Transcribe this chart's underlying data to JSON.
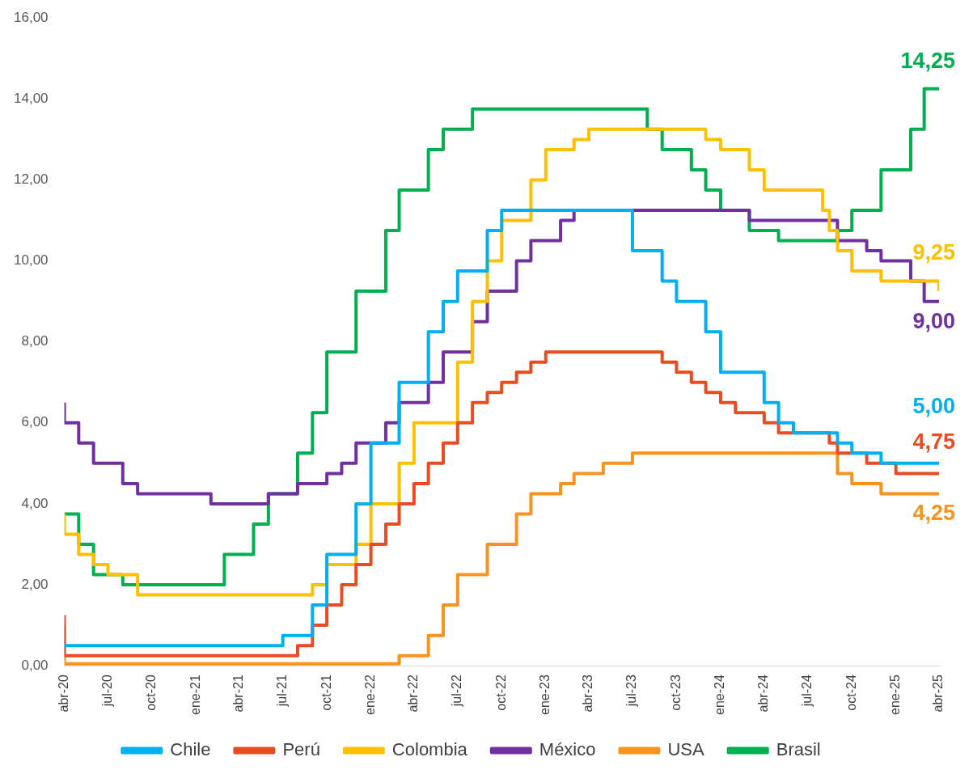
{
  "chart_data": {
    "type": "step",
    "xlim": [
      "2020-04",
      "2025-04"
    ],
    "xticks": [
      {
        "value": "2020-04",
        "label": "abr-20"
      },
      {
        "value": "2020-07",
        "label": "jul-20"
      },
      {
        "value": "2020-10",
        "label": "oct-20"
      },
      {
        "value": "2021-01",
        "label": "ene-21"
      },
      {
        "value": "2021-04",
        "label": "abr-21"
      },
      {
        "value": "2021-07",
        "label": "jul-21"
      },
      {
        "value": "2021-10",
        "label": "oct-21"
      },
      {
        "value": "2022-01",
        "label": "ene-22"
      },
      {
        "value": "2022-04",
        "label": "abr-22"
      },
      {
        "value": "2022-07",
        "label": "jul-22"
      },
      {
        "value": "2022-10",
        "label": "oct-22"
      },
      {
        "value": "2023-01",
        "label": "ene-23"
      },
      {
        "value": "2023-04",
        "label": "abr-23"
      },
      {
        "value": "2023-07",
        "label": "jul-23"
      },
      {
        "value": "2023-10",
        "label": "oct-23"
      },
      {
        "value": "2024-01",
        "label": "ene-24"
      },
      {
        "value": "2024-04",
        "label": "abr-24"
      },
      {
        "value": "2024-07",
        "label": "jul-24"
      },
      {
        "value": "2024-10",
        "label": "oct-24"
      },
      {
        "value": "2025-01",
        "label": "ene-25"
      },
      {
        "value": "2025-04",
        "label": "abr-25"
      }
    ],
    "ylim": [
      0,
      16
    ],
    "yticks": [
      {
        "value": 0,
        "label": "0,00"
      },
      {
        "value": 2,
        "label": "2,00"
      },
      {
        "value": 4,
        "label": "4,00"
      },
      {
        "value": 6,
        "label": "6,00"
      },
      {
        "value": 8,
        "label": "8,00"
      },
      {
        "value": 10,
        "label": "10,00"
      },
      {
        "value": 12,
        "label": "12,00"
      },
      {
        "value": 14,
        "label": "14,00"
      },
      {
        "value": 16,
        "label": "16,00"
      }
    ],
    "grid": false,
    "legend": "bottom",
    "marker": "none",
    "line_style": "solid",
    "series": [
      {
        "name": "Chile",
        "color": "#00b0f0",
        "x": [
          "2020-04",
          "2021-07",
          "2021-09",
          "2021-10",
          "2021-12",
          "2022-01",
          "2022-03",
          "2022-05",
          "2022-06",
          "2022-07",
          "2022-09",
          "2022-10",
          "2023-07",
          "2023-09",
          "2023-10",
          "2023-12",
          "2024-01",
          "2024-04",
          "2024-05",
          "2024-06",
          "2024-09",
          "2024-10",
          "2024-12",
          "2025-04"
        ],
        "values": [
          0.5,
          0.75,
          1.5,
          2.75,
          4.0,
          5.5,
          7.0,
          8.25,
          9.0,
          9.75,
          10.75,
          11.25,
          10.25,
          9.5,
          9.0,
          8.25,
          7.25,
          6.5,
          6.0,
          5.75,
          5.5,
          5.25,
          5.0,
          5.0
        ],
        "value_labels": [
          null,
          null,
          null,
          null,
          null,
          null,
          null,
          null,
          null,
          null,
          null,
          null,
          null,
          null,
          null,
          null,
          null,
          null,
          null,
          null,
          null,
          null,
          null,
          "5,00"
        ]
      },
      {
        "name": "Perú",
        "color": "#e84c22",
        "x": [
          "2020-04",
          "2020-04",
          "2021-08",
          "2021-09",
          "2021-10",
          "2021-11",
          "2021-12",
          "2022-01",
          "2022-02",
          "2022-03",
          "2022-04",
          "2022-05",
          "2022-06",
          "2022-07",
          "2022-08",
          "2022-09",
          "2022-10",
          "2022-11",
          "2022-12",
          "2023-01",
          "2023-09",
          "2023-10",
          "2023-11",
          "2023-12",
          "2024-01",
          "2024-02",
          "2024-04",
          "2024-05",
          "2024-08-15",
          "2024-09",
          "2024-11",
          "2025-01",
          "2025-04"
        ],
        "values": [
          1.25,
          0.25,
          0.5,
          1.0,
          1.5,
          2.0,
          2.5,
          3.0,
          3.5,
          4.0,
          4.5,
          5.0,
          5.5,
          6.0,
          6.5,
          6.75,
          7.0,
          7.25,
          7.5,
          7.75,
          7.5,
          7.25,
          7.0,
          6.75,
          6.5,
          6.25,
          6.0,
          5.75,
          5.5,
          5.25,
          5.0,
          4.75,
          4.75
        ],
        "value_labels": [
          null,
          null,
          null,
          null,
          null,
          null,
          null,
          null,
          null,
          null,
          null,
          null,
          null,
          null,
          null,
          null,
          null,
          null,
          null,
          null,
          null,
          null,
          null,
          null,
          null,
          null,
          null,
          null,
          null,
          null,
          null,
          null,
          "4,75"
        ]
      },
      {
        "name": "Colombia",
        "color": "#ffc000",
        "x": [
          "2020-04",
          "2020-04",
          "2020-05",
          "2020-06",
          "2020-07",
          "2020-09",
          "2021-09",
          "2021-10",
          "2021-12",
          "2022-01",
          "2022-03",
          "2022-04",
          "2022-07",
          "2022-08",
          "2022-09",
          "2022-10",
          "2022-12",
          "2023-01",
          "2023-03",
          "2023-04",
          "2023-12",
          "2024-01",
          "2024-03",
          "2024-04",
          "2024-08",
          "2024-08-15",
          "2024-09",
          "2024-10",
          "2024-12",
          "2025-04"
        ],
        "values": [
          3.75,
          3.25,
          2.75,
          2.5,
          2.25,
          1.75,
          2.0,
          2.5,
          3.0,
          4.0,
          5.0,
          6.0,
          7.5,
          9.0,
          10.0,
          11.0,
          12.0,
          12.75,
          13.0,
          13.25,
          13.0,
          12.75,
          12.25,
          11.75,
          11.25,
          10.75,
          10.25,
          9.75,
          9.5,
          9.25
        ],
        "value_labels": [
          null,
          null,
          null,
          null,
          null,
          null,
          null,
          null,
          null,
          null,
          null,
          null,
          null,
          null,
          null,
          null,
          null,
          null,
          null,
          null,
          null,
          null,
          null,
          null,
          null,
          null,
          null,
          null,
          null,
          "9,25"
        ]
      },
      {
        "name": "México",
        "color": "#7030a0",
        "x": [
          "2020-04",
          "2020-04",
          "2020-05",
          "2020-06",
          "2020-08",
          "2020-09",
          "2021-02",
          "2021-06",
          "2021-08",
          "2021-10",
          "2021-11",
          "2021-12",
          "2022-02",
          "2022-03",
          "2022-05",
          "2022-06",
          "2022-08",
          "2022-09",
          "2022-11",
          "2022-12",
          "2023-02",
          "2023-03",
          "2024-03",
          "2024-09",
          "2024-11",
          "2024-12",
          "2025-02",
          "2025-03",
          "2025-04"
        ],
        "values": [
          6.5,
          6.0,
          5.5,
          5.0,
          4.5,
          4.25,
          4.0,
          4.25,
          4.5,
          4.75,
          5.0,
          5.5,
          6.0,
          6.5,
          7.0,
          7.75,
          8.5,
          9.25,
          10.0,
          10.5,
          11.0,
          11.25,
          11.0,
          10.5,
          10.25,
          10.0,
          9.5,
          9.0,
          9.0
        ],
        "value_labels": [
          null,
          null,
          null,
          null,
          null,
          null,
          null,
          null,
          null,
          null,
          null,
          null,
          null,
          null,
          null,
          null,
          null,
          null,
          null,
          null,
          null,
          null,
          null,
          null,
          null,
          null,
          null,
          null,
          "9,00"
        ]
      },
      {
        "name": "USA",
        "color": "#f7941d",
        "x": [
          "2020-04",
          "2020-04",
          "2022-03",
          "2022-05",
          "2022-06",
          "2022-07",
          "2022-09",
          "2022-11",
          "2022-12",
          "2023-02",
          "2023-03",
          "2023-05",
          "2023-07",
          "2024-09",
          "2024-10",
          "2024-12",
          "2025-04"
        ],
        "values": [
          1.0,
          0.05,
          0.25,
          0.75,
          1.5,
          2.25,
          3.0,
          3.75,
          4.25,
          4.5,
          4.75,
          5.0,
          5.25,
          4.75,
          4.5,
          4.25,
          4.25
        ],
        "value_labels": [
          null,
          null,
          null,
          null,
          null,
          null,
          null,
          null,
          null,
          null,
          null,
          null,
          null,
          null,
          null,
          null,
          "4,25"
        ]
      },
      {
        "name": "Brasil",
        "color": "#00b050",
        "x": [
          "2020-04",
          "2020-05",
          "2020-06",
          "2020-08",
          "2021-03",
          "2021-05",
          "2021-06",
          "2021-08",
          "2021-09",
          "2021-10",
          "2021-12",
          "2022-02",
          "2022-03",
          "2022-05",
          "2022-06",
          "2022-08",
          "2023-08",
          "2023-09",
          "2023-11",
          "2023-12",
          "2024-01",
          "2024-03",
          "2024-05",
          "2024-09",
          "2024-10",
          "2024-12",
          "2025-02",
          "2025-03",
          "2025-04"
        ],
        "values": [
          3.75,
          3.0,
          2.25,
          2.0,
          2.75,
          3.5,
          4.25,
          5.25,
          6.25,
          7.75,
          9.25,
          10.75,
          11.75,
          12.75,
          13.25,
          13.75,
          13.25,
          12.75,
          12.25,
          11.75,
          11.25,
          10.75,
          10.5,
          10.75,
          11.25,
          12.25,
          13.25,
          14.25,
          14.25
        ],
        "value_labels": [
          null,
          null,
          null,
          null,
          null,
          null,
          null,
          null,
          null,
          null,
          null,
          null,
          null,
          null,
          null,
          null,
          null,
          null,
          null,
          null,
          null,
          null,
          null,
          null,
          null,
          null,
          null,
          null,
          "14,25"
        ]
      }
    ]
  }
}
